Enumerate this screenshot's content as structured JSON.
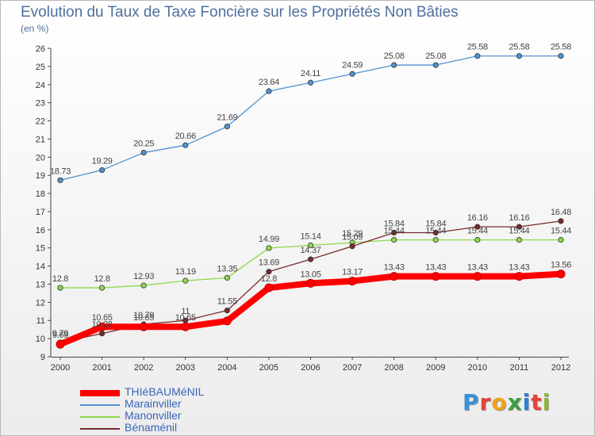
{
  "header": {
    "title": "Evolution du Taux de Taxe Foncière sur les Propriétés Non Bâties",
    "unit": "(en %)"
  },
  "logo": {
    "text": "Proxiti",
    "letter_colors": [
      "#3b8fd6",
      "#e5433c",
      "#f0a21a",
      "#3d9e3f",
      "#2f7fd0",
      "#e5433c",
      "#8bb73a"
    ]
  },
  "chart_data": {
    "type": "line",
    "title": "Evolution du Taux de Taxe Foncière sur les Propriétés Non Bâties",
    "ylabel": "(en %)",
    "xlabel": "",
    "x": [
      "2000",
      "2001",
      "2002",
      "2003",
      "2004",
      "2005",
      "2006",
      "2007",
      "2008",
      "2009",
      "2010",
      "2011",
      "2012"
    ],
    "ylim": [
      9,
      26
    ],
    "yticks": [
      "9",
      "10",
      "11",
      "12",
      "13",
      "14",
      "15",
      "16",
      "17",
      "18",
      "19",
      "20",
      "21",
      "22",
      "23",
      "24",
      "25",
      "26"
    ],
    "grid": false,
    "legend_position": "bottom-left",
    "series": [
      {
        "name": "THIéBAUMéNIL",
        "color": "#ff0000",
        "thick": true,
        "values": [
          9.69,
          10.65,
          10.65,
          10.65,
          10.97,
          12.8,
          13.05,
          13.17,
          13.43,
          13.43,
          13.43,
          13.43,
          13.56
        ],
        "labels": [
          "9.69",
          "10.65",
          "10.65",
          "10.65",
          "",
          "12.8",
          "13.05",
          "13.17",
          "13.43",
          "13.43",
          "13.43",
          "13.43",
          "13.56"
        ]
      },
      {
        "name": "Marainviller",
        "color": "#4f93d2",
        "values": [
          18.73,
          19.29,
          20.25,
          20.66,
          21.69,
          23.64,
          24.11,
          24.59,
          25.08,
          25.08,
          25.58,
          25.58,
          25.58
        ],
        "labels": [
          "18.73",
          "19.29",
          "20.25",
          "20.66",
          "21.69",
          "23.64",
          "24.11",
          "24.59",
          "25.08",
          "25.08",
          "25.58",
          "25.58",
          "25.58"
        ]
      },
      {
        "name": "Manonviller",
        "color": "#8fd84e",
        "values": [
          12.8,
          12.8,
          12.93,
          13.19,
          13.35,
          14.99,
          15.14,
          15.29,
          15.44,
          15.44,
          15.44,
          15.44,
          15.44
        ],
        "labels": [
          "12.8",
          "12.8",
          "12.93",
          "13.19",
          "13.35",
          "14.99",
          "15.14",
          "15.29",
          "15.44",
          "15.44",
          "15.44",
          "15.44",
          "15.44"
        ]
      },
      {
        "name": "Bénaménil",
        "color": "#7a2a2a",
        "values": [
          9.79,
          10.28,
          10.79,
          11.0,
          11.55,
          13.69,
          14.37,
          15.09,
          15.84,
          15.84,
          16.16,
          16.16,
          16.48
        ],
        "labels": [
          "9.79",
          "10.28",
          "10.79",
          "11",
          "11.55",
          "13.69",
          "14.37",
          "15.09",
          "15.84",
          "15.84",
          "16.16",
          "16.16",
          "16.48"
        ]
      }
    ]
  }
}
